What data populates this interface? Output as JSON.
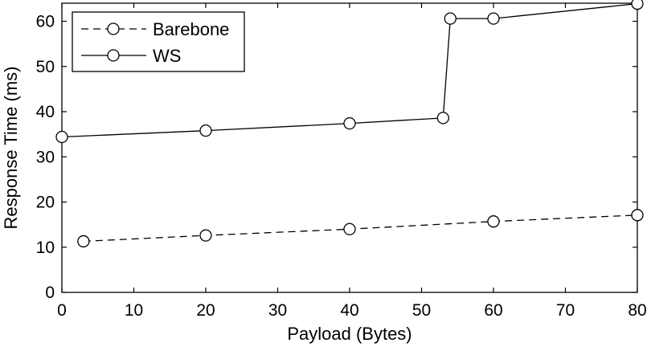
{
  "chart_data": {
    "type": "line",
    "xlabel": "Payload (Bytes)",
    "ylabel": "Response Time (ms)",
    "xlim": [
      0,
      80
    ],
    "ylim": [
      0,
      64
    ],
    "xticks": [
      0,
      10,
      20,
      30,
      40,
      50,
      60,
      70,
      80
    ],
    "yticks": [
      0,
      10,
      20,
      30,
      40,
      50,
      60
    ],
    "grid": false,
    "legend_position": "top-left",
    "series": [
      {
        "name": "Barebone",
        "line_style": "dashed",
        "marker": "circle-open",
        "color": "#000000",
        "points": [
          [
            3,
            11.3
          ],
          [
            20,
            12.6
          ],
          [
            40,
            14.0
          ],
          [
            60,
            15.7
          ],
          [
            80,
            17.1
          ]
        ]
      },
      {
        "name": "WS",
        "line_style": "solid",
        "marker": "circle-open",
        "color": "#000000",
        "points": [
          [
            0,
            34.4
          ],
          [
            20,
            35.8
          ],
          [
            40,
            37.4
          ],
          [
            53,
            38.6
          ],
          [
            54,
            60.6
          ],
          [
            60,
            60.6
          ],
          [
            80,
            63.9
          ]
        ]
      }
    ]
  }
}
